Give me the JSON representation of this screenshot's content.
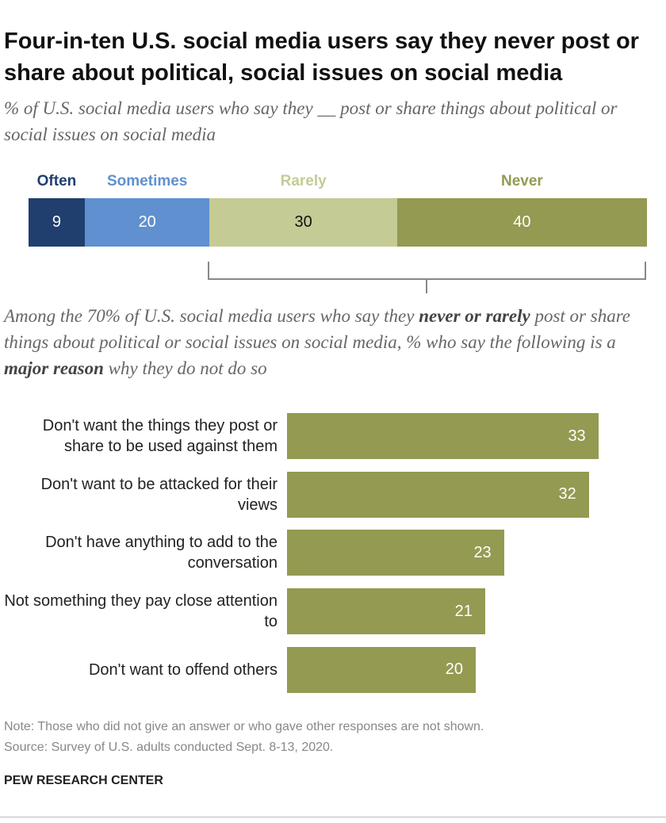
{
  "chart_data": [
    {
      "type": "stacked-bar",
      "title": "Four-in-ten U.S. social media users say they never post or share about political, social issues on social media",
      "subtitle": "% of U.S. social media users who say they __ post or share things about political or social issues on social media",
      "series": [
        {
          "name": "Often",
          "color": "#203f6e",
          "values": [
            9
          ]
        },
        {
          "name": "Sometimes",
          "color": "#6090d0",
          "values": [
            20
          ]
        },
        {
          "name": "Rarely",
          "color": "#c5cb94",
          "values": [
            30
          ]
        },
        {
          "name": "Never",
          "color": "#949a51",
          "values": [
            40
          ]
        }
      ]
    },
    {
      "type": "bar",
      "subtitle": [
        "Among the 70% of U.S. social media users who say they ",
        "never or rarely",
        " post or share things about political or social issues on social media, % who say the following is a ",
        "major reason",
        " why they do not do so"
      ],
      "categories": [
        "Don't want the things they post or share to be used against them",
        "Don't want to be attacked for their views",
        "Don't have anything to add to the conversation",
        "Not something they pay close attention to",
        "Don't want to offend others"
      ],
      "values": [
        33,
        32,
        23,
        21,
        20
      ],
      "color": "#949a51"
    }
  ],
  "footer": {
    "note": "Note: Those who did not give an answer or who gave other responses are not shown.",
    "source": "Source: Survey of U.S. adults conducted Sept. 8-13, 2020.",
    "credit": "PEW RESEARCH CENTER"
  }
}
